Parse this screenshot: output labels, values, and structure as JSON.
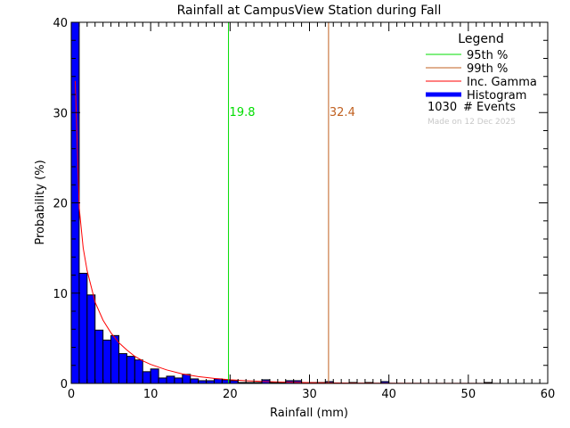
{
  "chart_data": {
    "type": "bar",
    "title": "Rainfall at CampusView Station during Fall",
    "xlabel": "Rainfall (mm)",
    "ylabel": "Probability (%)",
    "xlim": [
      0,
      60
    ],
    "ylim": [
      0,
      40
    ],
    "x_ticks": [
      "0",
      "10",
      "20",
      "30",
      "40",
      "50",
      "60"
    ],
    "y_ticks": [
      "0",
      "10",
      "20",
      "30",
      "40"
    ],
    "bin_width": 1,
    "histogram": {
      "name": "Histogram",
      "color": "#0000ff",
      "bin_starts": [
        0,
        1,
        2,
        3,
        4,
        5,
        6,
        7,
        8,
        9,
        10,
        11,
        12,
        13,
        14,
        15,
        16,
        17,
        18,
        19,
        20,
        21,
        22,
        23,
        24,
        25,
        26,
        27,
        28,
        29,
        30,
        31,
        32,
        33,
        34,
        35,
        36,
        37,
        38,
        39,
        40,
        41,
        42,
        43,
        44,
        45,
        46,
        47,
        48,
        49,
        50,
        51,
        52,
        53,
        54,
        55,
        56,
        57,
        58,
        59
      ],
      "values": [
        40,
        12.2,
        9.8,
        5.9,
        4.8,
        5.3,
        3.3,
        3.0,
        2.6,
        1.3,
        1.6,
        0.6,
        0.8,
        0.6,
        1.0,
        0.5,
        0.3,
        0.3,
        0.5,
        0.4,
        0.3,
        0.1,
        0.1,
        0.1,
        0.4,
        0.1,
        0.1,
        0.3,
        0.3,
        0.0,
        0.1,
        0.1,
        0.2,
        0.0,
        0.0,
        0.1,
        0.0,
        0.1,
        0.0,
        0.2,
        0.0,
        0.0,
        0.0,
        0.0,
        0.0,
        0.0,
        0.0,
        0.0,
        0.0,
        0.0,
        0.0,
        0.0,
        0.1,
        0.0,
        0.0,
        0.0,
        0.0,
        0.0,
        0.0,
        0.0
      ]
    },
    "gamma_curve": {
      "name": "Inc. Gamma",
      "color": "#ff0000",
      "x": [
        0.5,
        1,
        1.5,
        2,
        3,
        4,
        5,
        6,
        7,
        8,
        9,
        10,
        12,
        14,
        16,
        18,
        20,
        22,
        24,
        26,
        28,
        30,
        35,
        40,
        45,
        50,
        55,
        60
      ],
      "y": [
        33.5,
        19.5,
        15.0,
        12.5,
        9.0,
        7.0,
        5.6,
        4.5,
        3.7,
        3.0,
        2.5,
        2.1,
        1.5,
        1.05,
        0.75,
        0.55,
        0.4,
        0.3,
        0.22,
        0.16,
        0.12,
        0.09,
        0.04,
        0.02,
        0.01,
        0.005,
        0.003,
        0.001
      ]
    },
    "percentile_lines": [
      {
        "name": "95th %",
        "value": 19.8,
        "label": "19.8",
        "color": "#00dd00"
      },
      {
        "name": "99th %",
        "value": 32.4,
        "label": "32.4",
        "color": "#c06020"
      }
    ],
    "legend": {
      "title": "Legend",
      "placement": "top-right",
      "items": [
        {
          "label": "95th %",
          "color": "#00dd00",
          "style": "line"
        },
        {
          "label": "99th %",
          "color": "#c06020",
          "style": "line"
        },
        {
          "label": "Inc. Gamma",
          "color": "#ff0000",
          "style": "line"
        },
        {
          "label": "Histogram",
          "color": "#0000ff",
          "style": "thick"
        }
      ],
      "events_count": "1030",
      "events_label": "# Events",
      "made_on": "Made on 12 Dec 2025"
    }
  }
}
